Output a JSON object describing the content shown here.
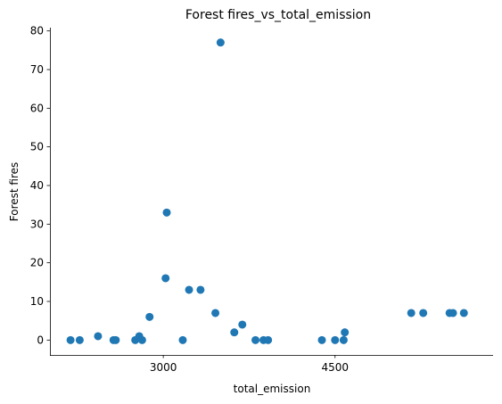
{
  "chart_data": {
    "type": "scatter",
    "title": "Forest fires_vs_total_emission",
    "xlabel": "total_emission",
    "ylabel": "Forest fires",
    "xlim": [
      2010,
      5880
    ],
    "ylim": [
      -3.85,
      80.85
    ],
    "x_ticks": [
      3000,
      4500
    ],
    "x_tick_labels": [
      "3000",
      "4500"
    ],
    "y_ticks": [
      0,
      10,
      20,
      30,
      40,
      50,
      60,
      70,
      80
    ],
    "y_tick_labels": [
      "0",
      "10",
      "20",
      "30",
      "40",
      "50",
      "60",
      "70",
      "80"
    ],
    "grid": false,
    "point_color": "#1f77b4",
    "series": [
      {
        "points": [
          {
            "x": 2190,
            "y": 0
          },
          {
            "x": 2270,
            "y": 0
          },
          {
            "x": 2430,
            "y": 1
          },
          {
            "x": 2565,
            "y": 0
          },
          {
            "x": 2585,
            "y": 0
          },
          {
            "x": 2755,
            "y": 0
          },
          {
            "x": 2790,
            "y": 1
          },
          {
            "x": 2815,
            "y": 0
          },
          {
            "x": 2880,
            "y": 6
          },
          {
            "x": 3020,
            "y": 16
          },
          {
            "x": 3030,
            "y": 33
          },
          {
            "x": 3170,
            "y": 0
          },
          {
            "x": 3225,
            "y": 13
          },
          {
            "x": 3325,
            "y": 13
          },
          {
            "x": 3455,
            "y": 7
          },
          {
            "x": 3500,
            "y": 77
          },
          {
            "x": 3620,
            "y": 2
          },
          {
            "x": 3690,
            "y": 4
          },
          {
            "x": 3805,
            "y": 0
          },
          {
            "x": 3875,
            "y": 0
          },
          {
            "x": 3915,
            "y": 0
          },
          {
            "x": 4385,
            "y": 0
          },
          {
            "x": 4500,
            "y": 0
          },
          {
            "x": 4575,
            "y": 0
          },
          {
            "x": 4585,
            "y": 2
          },
          {
            "x": 5165,
            "y": 7
          },
          {
            "x": 5270,
            "y": 7
          },
          {
            "x": 5500,
            "y": 7
          },
          {
            "x": 5530,
            "y": 7
          },
          {
            "x": 5625,
            "y": 7
          }
        ]
      }
    ]
  }
}
